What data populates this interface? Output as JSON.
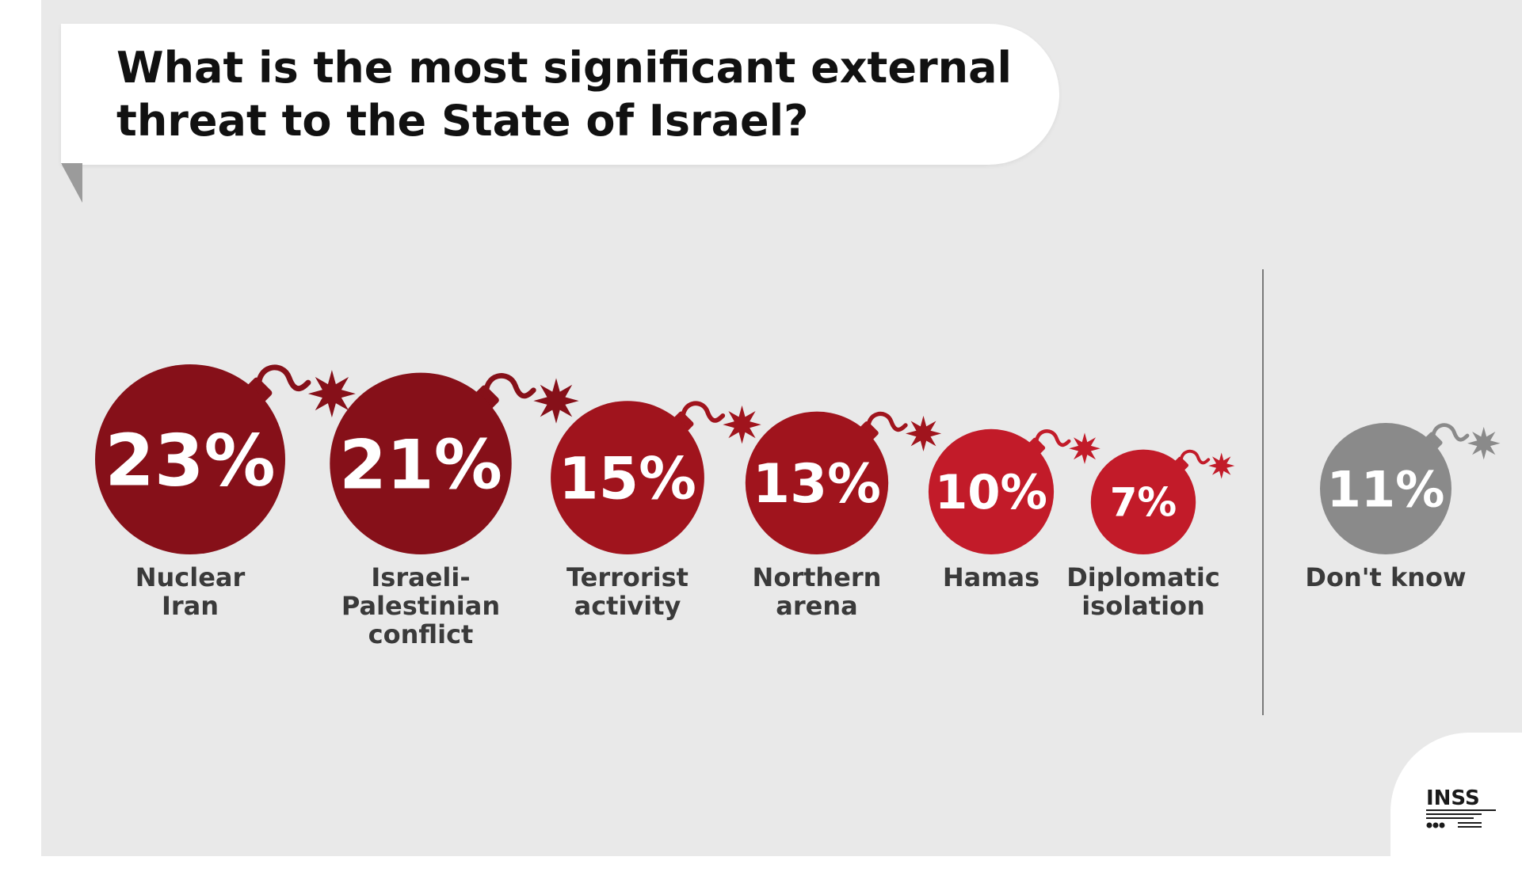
{
  "title": "What is the most significant external threat to the State of Israel?",
  "chart_data": {
    "type": "bar",
    "title": "What is the most significant external threat to the State of Israel?",
    "unit": "%",
    "categories": [
      "Nuclear Iran",
      "Israeli-Palestinian conflict",
      "Terrorist activity",
      "Northern arena",
      "Hamas",
      "Diplomatic isolation",
      "Don't know"
    ],
    "label_lines": [
      [
        "Nuclear",
        "Iran"
      ],
      [
        "Israeli-",
        "Palestinian",
        "conflict"
      ],
      [
        "Terrorist",
        "activity"
      ],
      [
        "Northern",
        "arena"
      ],
      [
        "Hamas"
      ],
      [
        "Diplomatic",
        "isolation"
      ],
      [
        "Don't know"
      ]
    ],
    "values": [
      23,
      21,
      15,
      13,
      10,
      7,
      11
    ],
    "value_labels": [
      "23%",
      "21%",
      "15%",
      "13%",
      "10%",
      "7%",
      "11%"
    ],
    "colors": [
      "#861019",
      "#861019",
      "#a0141d",
      "#a0141d",
      "#c21b29",
      "#c21b29",
      "#8a8a8a"
    ],
    "separated_category": "Don't know"
  },
  "logo": {
    "text": "INSS"
  }
}
